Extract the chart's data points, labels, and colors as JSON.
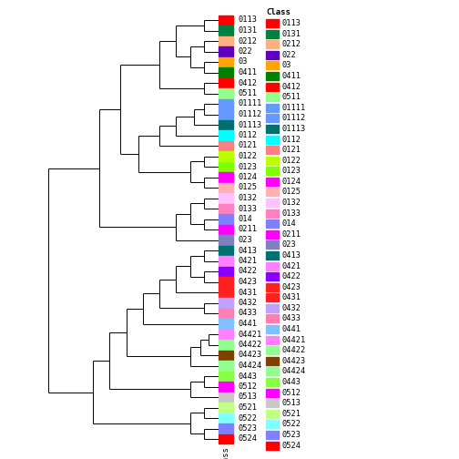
{
  "figsize": [
    5.04,
    5.04
  ],
  "dpi": 100,
  "labels": [
    "0113",
    "0131",
    "0212",
    "022",
    "03",
    "0411",
    "0412",
    "0511",
    "01111",
    "01112",
    "01113",
    "0112",
    "0121",
    "0122",
    "0123",
    "0124",
    "0125",
    "0132",
    "0133",
    "014",
    "0211",
    "023",
    "0413",
    "0421",
    "0422",
    "0423",
    "0431",
    "0432",
    "0433",
    "0441",
    "04421",
    "04422",
    "04423",
    "04424",
    "0443",
    "0512",
    "0513",
    "0521",
    "0522",
    "0523",
    "0524"
  ],
  "colors": [
    "#FF0000",
    "#008040",
    "#FFB080",
    "#6000C0",
    "#FFA500",
    "#008000",
    "#FF0000",
    "#90FF90",
    "#6699FF",
    "#6699FF",
    "#007070",
    "#00FFFF",
    "#FF8080",
    "#BBFF00",
    "#80FF00",
    "#FF00FF",
    "#FFB0B0",
    "#FFC0FF",
    "#FF80C0",
    "#8080FF",
    "#FF00FF",
    "#8080C0",
    "#007070",
    "#FF80FF",
    "#8800FF",
    "#FF2020",
    "#FF2020",
    "#C0A0FF",
    "#FF80B0",
    "#80C0FF",
    "#FF80FF",
    "#90FF90",
    "#804000",
    "#90FF90",
    "#88FF44",
    "#FF00FF",
    "#C8C8C8",
    "#C0FF80",
    "#80FFFF",
    "#8080FF",
    "#FF0000"
  ],
  "legend_colors": [
    "#6699FF",
    "#FF0000",
    "#008040",
    "#FFB080",
    "#6000C0",
    "#FFA500",
    "#008000",
    "#FF0000",
    "#90FF90",
    "#6699FF",
    "#6699FF",
    "#007070",
    "#00FFFF",
    "#FF8080",
    "#BBFF00",
    "#80FF00",
    "#FF00FF",
    "#FFB0B0",
    "#FFC0FF",
    "#FF80C0",
    "#8080FF",
    "#FF00FF",
    "#8080C0",
    "#007070",
    "#FF80FF",
    "#8800FF",
    "#FF2020",
    "#FF2020",
    "#C0A0FF",
    "#FF80B0",
    "#80C0FF",
    "#FF80FF",
    "#90FF90",
    "#804000",
    "#90FF90",
    "#88FF44",
    "#FF00FF",
    "#C8C8C8",
    "#C0FF80",
    "#80FFFF",
    "#8080FF",
    "#FF0000"
  ],
  "legend_labels": [
    "Class",
    "0113",
    "0131",
    "0212",
    "022",
    "03",
    "0411",
    "0412",
    "0511",
    "01111",
    "01112",
    "01113",
    "0112",
    "0121",
    "0122",
    "0123",
    "0124",
    "0125",
    "0132",
    "0133",
    "014",
    "0211",
    "023",
    "0413",
    "0421",
    "0422",
    "0423",
    "0431",
    "0432",
    "0433",
    "0441",
    "04421",
    "04422",
    "04423",
    "04424",
    "0443",
    "0512",
    "0513",
    "0521",
    "0522",
    "0523",
    "0524"
  ],
  "background_color": "#FFFFFF"
}
